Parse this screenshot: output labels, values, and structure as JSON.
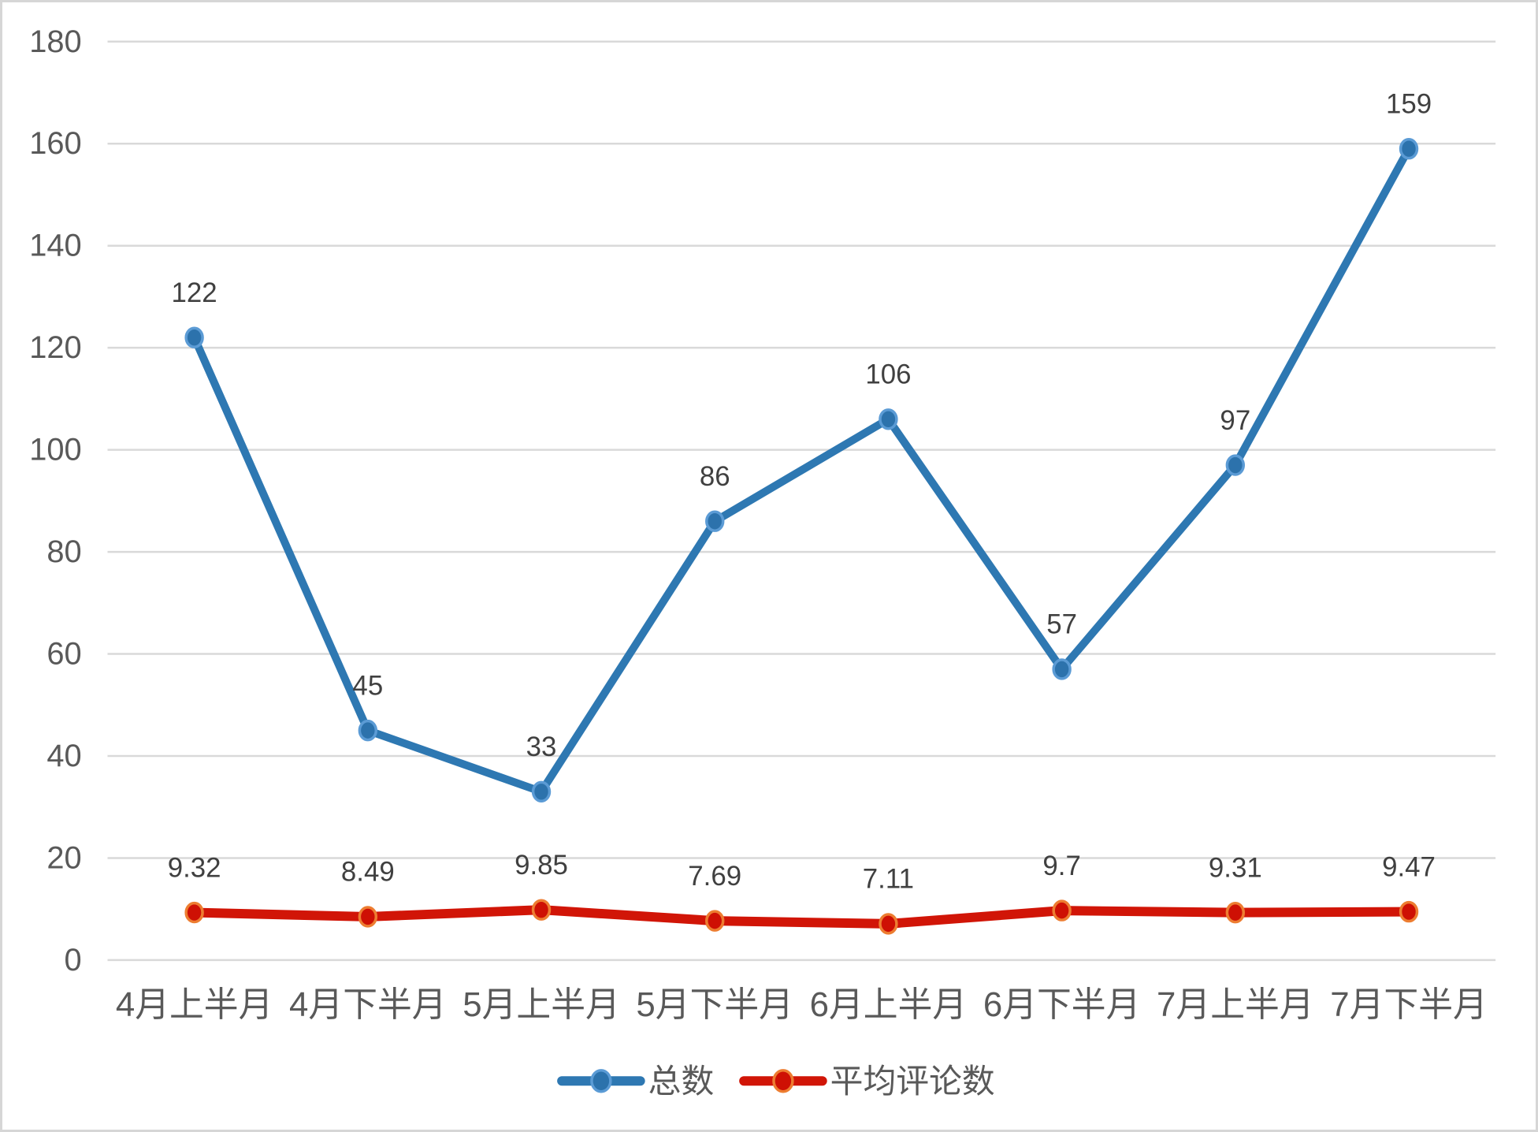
{
  "chart": {
    "background": "#ffffff",
    "frame_border_color": "#d6d6d6",
    "grid_color": "#d9d9d9",
    "tick_label_color": "#595959",
    "category_label_color": "#595959",
    "data_label_color": "#404040",
    "legend_label_color": "#595959"
  },
  "chart_data": {
    "type": "line",
    "title": "",
    "xlabel": "",
    "ylabel": "",
    "categories": [
      "4月上半月",
      "4月下半月",
      "5月上半月",
      "5月下半月",
      "6月上半月",
      "6月下半月",
      "7月上半月",
      "7月下半月"
    ],
    "series": [
      {
        "name": "总数",
        "values": [
          122,
          45,
          33,
          86,
          106,
          57,
          97,
          159
        ],
        "labels": [
          "122",
          "45",
          "33",
          "86",
          "106",
          "57",
          "97",
          "159"
        ],
        "line_color": "#2e78b2",
        "marker_fill": "#2c72ac",
        "marker_stroke": "#5b9bd5"
      },
      {
        "name": "平均评论数",
        "values": [
          9.32,
          8.49,
          9.85,
          7.69,
          7.11,
          9.7,
          9.31,
          9.47
        ],
        "labels": [
          "9.32",
          "8.49",
          "9.85",
          "7.69",
          "7.11",
          "9.7",
          "9.31",
          "9.47"
        ],
        "line_color": "#d11507",
        "marker_fill": "#ce1004",
        "marker_stroke": "#ed7d31"
      }
    ],
    "ylim": [
      0,
      180
    ],
    "ystep": 20,
    "y_ticks": [
      "0",
      "20",
      "40",
      "60",
      "80",
      "100",
      "120",
      "140",
      "160",
      "180"
    ],
    "grid": true,
    "legend_position": "bottom"
  }
}
